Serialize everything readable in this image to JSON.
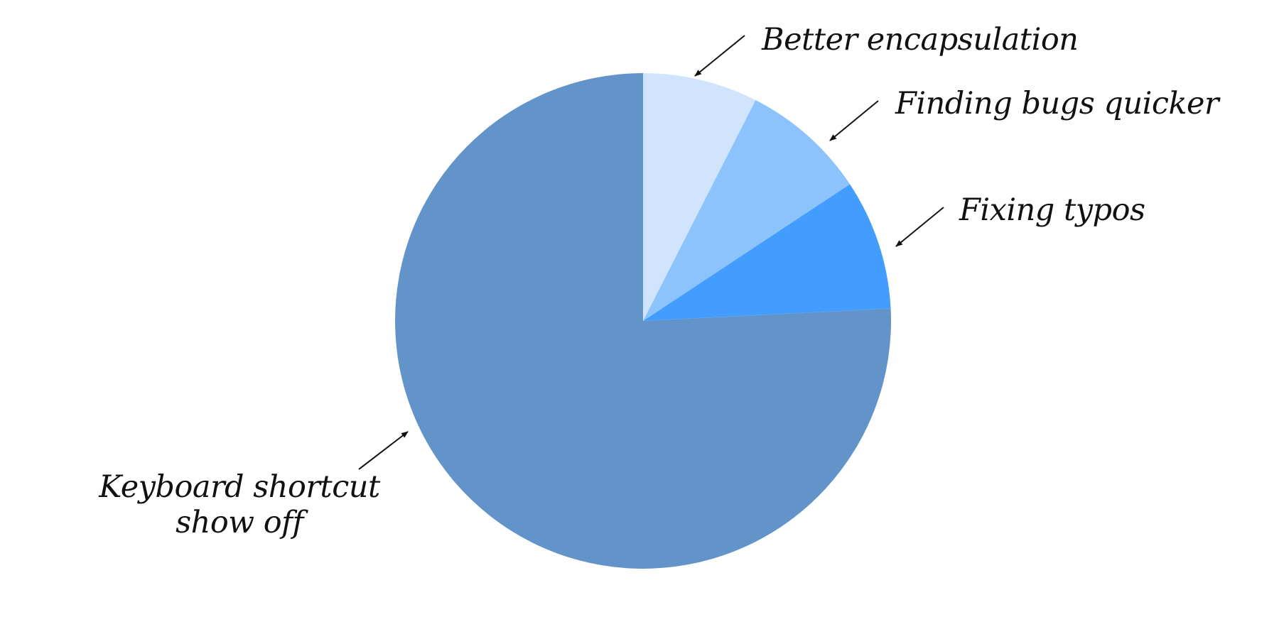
{
  "chart_data": {
    "type": "pie",
    "title": "",
    "start_angle_deg": 0,
    "direction": "clockwise",
    "slices": [
      {
        "label": "Better encapsulation",
        "value": 7.5,
        "color": "#d0e5fd"
      },
      {
        "label": "Finding bugs quicker",
        "value": 8.2,
        "color": "#8cc3fd"
      },
      {
        "label": "Fixing typos",
        "value": 8.5,
        "color": "#429dfe"
      },
      {
        "label": "Keyboard shortcut show off",
        "value": 75.8,
        "color": "#6394c9"
      }
    ],
    "legend": "none"
  }
}
